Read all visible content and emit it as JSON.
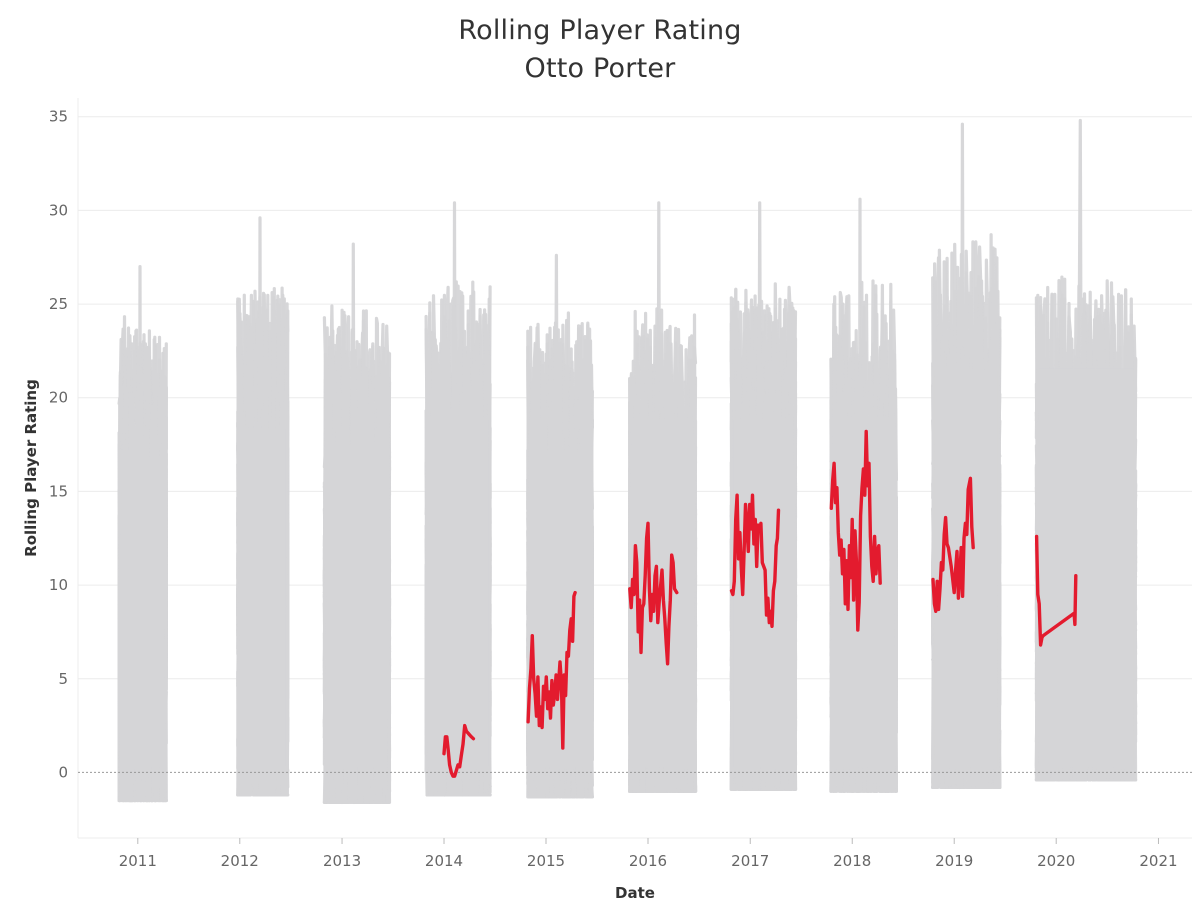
{
  "chart_data": {
    "type": "line",
    "title": "Rolling Player Rating",
    "subtitle": "Otto Porter",
    "xlabel": "Date",
    "ylabel": "Rolling Player Rating",
    "xlim": [
      "2010-06-01",
      "2021-05-01"
    ],
    "ylim": [
      -3.5,
      36
    ],
    "y_ticks": [
      0,
      5,
      10,
      15,
      20,
      25,
      30,
      35
    ],
    "x_ticks": [
      "2011",
      "2012",
      "2013",
      "2014",
      "2015",
      "2016",
      "2017",
      "2018",
      "2019",
      "2020",
      "2021"
    ],
    "zero_reference_line": 0,
    "grid": "horizontal",
    "colors": {
      "highlight": "#e31b2e",
      "background_series": "#d5d5d7",
      "grid": "#ececec",
      "zero_line": "#999999"
    },
    "background_series": {
      "description_label": "",
      "seasons": [
        {
          "start": "2010-10-26",
          "end": "2011-04-13",
          "min": -1.5,
          "max": 27.0
        },
        {
          "start": "2011-12-25",
          "end": "2012-06-21",
          "min": -1.2,
          "max": 29.6
        },
        {
          "start": "2012-10-30",
          "end": "2013-06-20",
          "min": -1.6,
          "max": 28.2
        },
        {
          "start": "2013-10-29",
          "end": "2014-06-15",
          "min": -1.2,
          "max": 30.4
        },
        {
          "start": "2014-10-28",
          "end": "2015-06-16",
          "min": -1.3,
          "max": 27.6
        },
        {
          "start": "2015-10-27",
          "end": "2016-06-19",
          "min": -1.0,
          "max": 30.4
        },
        {
          "start": "2016-10-25",
          "end": "2017-06-12",
          "min": -0.9,
          "max": 30.4
        },
        {
          "start": "2017-10-17",
          "end": "2018-06-08",
          "min": -1.0,
          "max": 30.6
        },
        {
          "start": "2018-10-16",
          "end": "2019-06-13",
          "min": -0.8,
          "max": 34.6
        },
        {
          "start": "2019-10-22",
          "end": "2020-10-11",
          "min": -0.4,
          "max": 34.8
        }
      ]
    },
    "series": [
      {
        "name": "",
        "color": "#e31b2e",
        "segments": [
          {
            "x": [
              "2014-01-01",
              "2014-01-06",
              "2014-01-11",
              "2014-01-16",
              "2014-01-21",
              "2014-01-27",
              "2014-02-02",
              "2014-02-08",
              "2014-02-14",
              "2014-02-20",
              "2014-02-26",
              "2014-03-04",
              "2014-03-10",
              "2014-03-16",
              "2014-03-22",
              "2014-03-28",
              "2014-04-03",
              "2014-04-09",
              "2014-04-16"
            ],
            "y": [
              1.0,
              1.9,
              1.9,
              1.2,
              0.4,
              0.0,
              -0.2,
              -0.2,
              0.1,
              0.4,
              0.3,
              0.9,
              1.5,
              2.5,
              2.2,
              2.1,
              2.0,
              1.9,
              1.8
            ]
          },
          {
            "x": [
              "2014-10-29",
              "2014-11-03",
              "2014-11-08",
              "2014-11-13",
              "2014-11-18",
              "2014-11-23",
              "2014-11-28",
              "2014-12-03",
              "2014-12-08",
              "2014-12-13",
              "2014-12-18",
              "2014-12-23",
              "2014-12-28",
              "2015-01-02",
              "2015-01-07",
              "2015-01-12",
              "2015-01-17",
              "2015-01-22",
              "2015-01-27",
              "2015-02-01",
              "2015-02-06",
              "2015-02-11",
              "2015-02-20",
              "2015-02-25",
              "2015-03-02",
              "2015-03-07",
              "2015-03-12",
              "2015-03-17",
              "2015-03-22",
              "2015-03-27",
              "2015-04-01",
              "2015-04-06",
              "2015-04-11",
              "2015-04-15"
            ],
            "y": [
              2.7,
              4.5,
              5.5,
              7.3,
              5.0,
              4.2,
              3.0,
              5.1,
              2.5,
              3.5,
              2.4,
              4.6,
              3.9,
              5.1,
              3.4,
              4.3,
              2.9,
              4.9,
              3.6,
              4.2,
              5.2,
              3.9,
              5.9,
              4.8,
              1.3,
              5.2,
              4.1,
              6.4,
              6.2,
              7.6,
              8.2,
              7.0,
              9.4,
              9.6
            ]
          },
          {
            "x": [
              "2015-10-28",
              "2015-11-02",
              "2015-11-07",
              "2015-11-12",
              "2015-11-17",
              "2015-11-22",
              "2015-11-27",
              "2015-12-02",
              "2015-12-07",
              "2015-12-12",
              "2015-12-17",
              "2015-12-22",
              "2015-12-27",
              "2016-01-01",
              "2016-01-06",
              "2016-01-11",
              "2016-01-16",
              "2016-01-21",
              "2016-01-26",
              "2016-01-31",
              "2016-02-05",
              "2016-02-10",
              "2016-02-20",
              "2016-02-25",
              "2016-03-01",
              "2016-03-06",
              "2016-03-11",
              "2016-03-16",
              "2016-03-21",
              "2016-03-26",
              "2016-03-31",
              "2016-04-05",
              "2016-04-13"
            ],
            "y": [
              9.8,
              8.8,
              10.3,
              9.5,
              12.1,
              11.2,
              7.5,
              9.2,
              6.4,
              8.8,
              9.0,
              10.5,
              12.5,
              13.3,
              9.8,
              8.1,
              9.5,
              8.6,
              10.5,
              11.0,
              8.0,
              9.1,
              10.8,
              9.2,
              8.2,
              6.9,
              5.8,
              7.8,
              9.2,
              11.6,
              11.2,
              9.8,
              9.6
            ]
          },
          {
            "x": [
              "2016-10-26",
              "2016-10-31",
              "2016-11-05",
              "2016-11-10",
              "2016-11-15",
              "2016-11-20",
              "2016-11-25",
              "2016-11-30",
              "2016-12-05",
              "2016-12-10",
              "2016-12-15",
              "2016-12-20",
              "2016-12-25",
              "2016-12-30",
              "2017-01-04",
              "2017-01-09",
              "2017-01-14",
              "2017-01-19",
              "2017-01-24",
              "2017-01-29",
              "2017-02-03",
              "2017-02-08",
              "2017-02-13",
              "2017-02-23",
              "2017-02-28",
              "2017-03-05",
              "2017-03-10",
              "2017-03-15",
              "2017-03-20",
              "2017-03-25",
              "2017-03-30",
              "2017-04-04",
              "2017-04-08",
              "2017-04-12"
            ],
            "y": [
              9.7,
              9.5,
              10.2,
              13.5,
              14.8,
              11.4,
              12.8,
              10.9,
              9.5,
              11.8,
              14.3,
              13.2,
              11.8,
              14.3,
              13.0,
              14.8,
              12.2,
              13.5,
              11.0,
              13.2,
              12.9,
              13.3,
              11.2,
              10.8,
              8.4,
              9.3,
              8.0,
              8.6,
              7.8,
              9.7,
              10.2,
              12.1,
              12.5,
              14.0
            ]
          },
          {
            "x": [
              "2017-10-18",
              "2017-10-23",
              "2017-10-28",
              "2017-11-02",
              "2017-11-07",
              "2017-11-12",
              "2017-11-17",
              "2017-11-22",
              "2017-11-27",
              "2017-12-02",
              "2017-12-07",
              "2017-12-12",
              "2017-12-17",
              "2017-12-22",
              "2017-12-27",
              "2018-01-01",
              "2018-01-06",
              "2018-01-11",
              "2018-01-16",
              "2018-01-21",
              "2018-01-26",
              "2018-01-31",
              "2018-02-05",
              "2018-02-10",
              "2018-02-15",
              "2018-02-20",
              "2018-02-25",
              "2018-03-02",
              "2018-03-07",
              "2018-03-12",
              "2018-03-17",
              "2018-03-22",
              "2018-03-27",
              "2018-04-01",
              "2018-04-06",
              "2018-04-11"
            ],
            "y": [
              14.1,
              15.6,
              16.5,
              14.4,
              15.2,
              12.8,
              11.6,
              12.4,
              10.6,
              11.9,
              9.0,
              11.3,
              8.7,
              12.1,
              10.4,
              13.5,
              9.2,
              12.9,
              11.3,
              7.6,
              9.1,
              13.7,
              15.2,
              16.2,
              14.8,
              18.2,
              15.3,
              16.5,
              12.6,
              11.0,
              10.2,
              12.6,
              10.6,
              11.8,
              12.1,
              10.1
            ]
          },
          {
            "x": [
              "2018-10-17",
              "2018-10-22",
              "2018-10-27",
              "2018-11-01",
              "2018-11-06",
              "2018-11-11",
              "2018-11-16",
              "2018-11-21",
              "2018-11-26",
              "2018-12-01",
              "2018-12-06",
              "2018-12-11",
              "2018-12-16",
              "2018-12-21",
              "2018-12-26",
              "2019-01-01",
              "2019-01-06",
              "2019-01-11",
              "2019-01-16",
              "2019-01-21",
              "2019-01-26",
              "2019-01-31",
              "2019-02-05",
              "2019-02-10",
              "2019-02-15",
              "2019-02-20",
              "2019-02-28",
              "2019-03-05",
              "2019-03-10"
            ],
            "y": [
              10.3,
              9.0,
              8.6,
              10.2,
              8.7,
              9.8,
              11.2,
              10.8,
              12.7,
              13.6,
              12.2,
              12.0,
              11.5,
              11.0,
              10.4,
              9.6,
              10.8,
              11.8,
              9.3,
              10.5,
              12.0,
              9.4,
              12.5,
              13.3,
              12.7,
              15.1,
              15.7,
              13.1,
              12.0
            ]
          },
          {
            "x": [
              "2019-10-23",
              "2019-10-27",
              "2019-11-01",
              "2019-11-06",
              "2019-11-11",
              "2019-11-15",
              "2020-03-05",
              "2020-03-08",
              "2020-03-11"
            ],
            "y": [
              12.6,
              9.5,
              9.0,
              6.8,
              7.2,
              7.3,
              8.5,
              7.9,
              10.5
            ]
          }
        ]
      }
    ]
  }
}
